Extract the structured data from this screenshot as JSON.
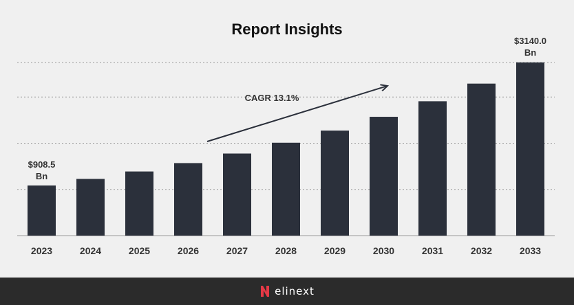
{
  "chart_data": {
    "type": "bar",
    "title": "Report Insights",
    "categories": [
      "2023",
      "2024",
      "2025",
      "2026",
      "2027",
      "2028",
      "2029",
      "2030",
      "2031",
      "2032",
      "2033"
    ],
    "values": [
      908.5,
      1028,
      1163,
      1315,
      1488,
      1684,
      1904,
      2154,
      2436,
      2756,
      3140.0
    ],
    "ylim": [
      0,
      3350
    ],
    "grid": true,
    "bar_color": "#2b303b",
    "annotations": {
      "first_label_line1": "$908.5",
      "first_label_line2": "Bn",
      "last_label_line1": "$3140.0",
      "last_label_line2": "Bn",
      "cagr": "CAGR 13.1%"
    }
  },
  "footer": {
    "brand_text": "elinext",
    "brand_color": "#e63946",
    "logo_icon": "elinext-logo-icon"
  }
}
